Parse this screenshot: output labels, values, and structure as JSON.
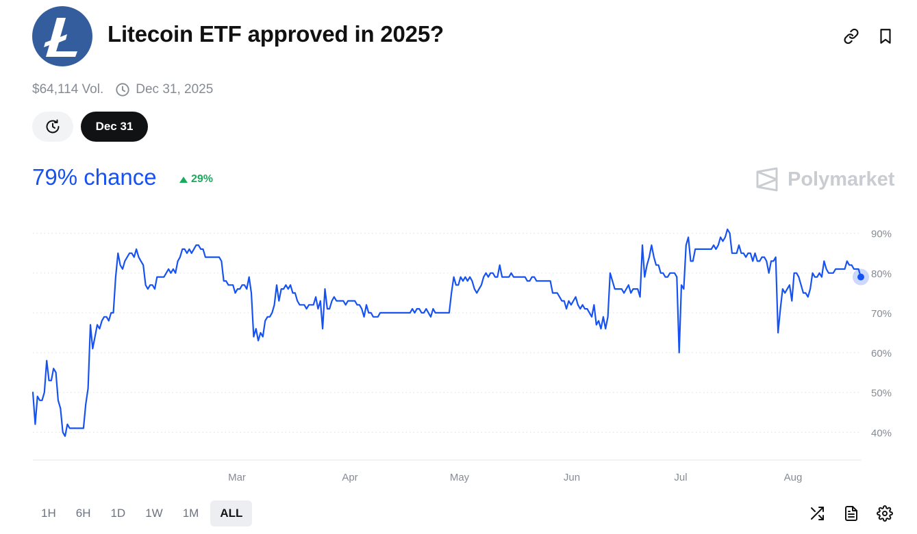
{
  "header": {
    "title": "Litecoin ETF approved in 2025?",
    "logo_icon": "litecoin-logo",
    "logo_color": "#345d9d",
    "actions": [
      "link-icon",
      "bookmark-icon"
    ]
  },
  "meta": {
    "volume": "$64,114 Vol.",
    "end_date": "Dec 31, 2025"
  },
  "controls": {
    "history_icon": "history-icon",
    "date_pill": "Dec 31"
  },
  "summary": {
    "chance": "79% chance",
    "delta": "29%",
    "delta_direction": "up",
    "accent_color": "#1652f0",
    "positive_color": "#1aaa5b"
  },
  "brand": {
    "name": "Polymarket"
  },
  "chart_data": {
    "type": "line",
    "x_ticks": [
      "Mar",
      "Apr",
      "May",
      "Jun",
      "Jul",
      "Aug"
    ],
    "y_ticks": [
      "90%",
      "80%",
      "70%",
      "60%",
      "50%",
      "40%"
    ],
    "ylim": [
      33,
      97
    ],
    "grid": "horizontal dotted",
    "line_color": "#1652f0",
    "series": [
      {
        "values": [
          50,
          42,
          49,
          48,
          48,
          50,
          58,
          53,
          53,
          56,
          55,
          48,
          46,
          40,
          39,
          42,
          41,
          41,
          41,
          41,
          41,
          41,
          41,
          47,
          51,
          67,
          61,
          64,
          67,
          66,
          68,
          69,
          69,
          68,
          70,
          70,
          79,
          85,
          82,
          81,
          83,
          84,
          85,
          85,
          84,
          86,
          84,
          83,
          82,
          77,
          76,
          77,
          77,
          76,
          79,
          79,
          79,
          79,
          80,
          81,
          80,
          81,
          80,
          83,
          84,
          86,
          86,
          85,
          86,
          85,
          86,
          87,
          87,
          86,
          86,
          84,
          84,
          84,
          84,
          84,
          84,
          84,
          83,
          78,
          78,
          77,
          77,
          77,
          75,
          76,
          76,
          77,
          77,
          76,
          79,
          75,
          64,
          66,
          63,
          65,
          64,
          68,
          69,
          69,
          70,
          72,
          77,
          73,
          76,
          76,
          77,
          76,
          77,
          75,
          75,
          73,
          72,
          72,
          72,
          71,
          72,
          72,
          72,
          74,
          71,
          73,
          66,
          76,
          71,
          71,
          73,
          74,
          73,
          73,
          73,
          73,
          72,
          73,
          73,
          73,
          73,
          72,
          72,
          71,
          69,
          72,
          70,
          70,
          69,
          69,
          69,
          70,
          70,
          70,
          70,
          70,
          70,
          70,
          70,
          70,
          70,
          70,
          70,
          70,
          70,
          71,
          70,
          71,
          71,
          70,
          70,
          71,
          70,
          69,
          71,
          70,
          70,
          70,
          70,
          70,
          70,
          70,
          75,
          79,
          77,
          77,
          79,
          78,
          79,
          78,
          79,
          78,
          76,
          75,
          76,
          77,
          79,
          80,
          79,
          80,
          80,
          79,
          79,
          82,
          79,
          79,
          79,
          79,
          80,
          79,
          79,
          79,
          79,
          79,
          79,
          78,
          78,
          79,
          79,
          78,
          78,
          78,
          78,
          78,
          78,
          78,
          75,
          75,
          75,
          74,
          73,
          73,
          71,
          73,
          72,
          73,
          74,
          72,
          71,
          72,
          71,
          71,
          70,
          69,
          72,
          67,
          68,
          66,
          69,
          66,
          69,
          80,
          78,
          76,
          76,
          76,
          76,
          75,
          76,
          77,
          75,
          76,
          76,
          76,
          74,
          87,
          79,
          82,
          84,
          87,
          84,
          82,
          82,
          80,
          80,
          79,
          79,
          80,
          80,
          80,
          79,
          60,
          77,
          76,
          87,
          89,
          83,
          83,
          86,
          86,
          86,
          86,
          86,
          86,
          86,
          86,
          87,
          86,
          87,
          89,
          88,
          89,
          91,
          90,
          85,
          85,
          85,
          87,
          85,
          85,
          84,
          85,
          85,
          83,
          85,
          83,
          83,
          84,
          84,
          83,
          80,
          83,
          83,
          84,
          65,
          71,
          76,
          75,
          76,
          77,
          73,
          80,
          80,
          79,
          77,
          75,
          75,
          74,
          76,
          80,
          79,
          79,
          80,
          79,
          83,
          81,
          80,
          80,
          80,
          81,
          81,
          81,
          81,
          81,
          83,
          82,
          82,
          81,
          81,
          81,
          79
        ]
      }
    ]
  },
  "time_ranges": [
    {
      "label": "1H",
      "active": false
    },
    {
      "label": "6H",
      "active": false
    },
    {
      "label": "1D",
      "active": false
    },
    {
      "label": "1W",
      "active": false
    },
    {
      "label": "1M",
      "active": false
    },
    {
      "label": "ALL",
      "active": true
    }
  ],
  "tools": [
    "shuffle-icon",
    "document-icon",
    "gear-icon"
  ]
}
